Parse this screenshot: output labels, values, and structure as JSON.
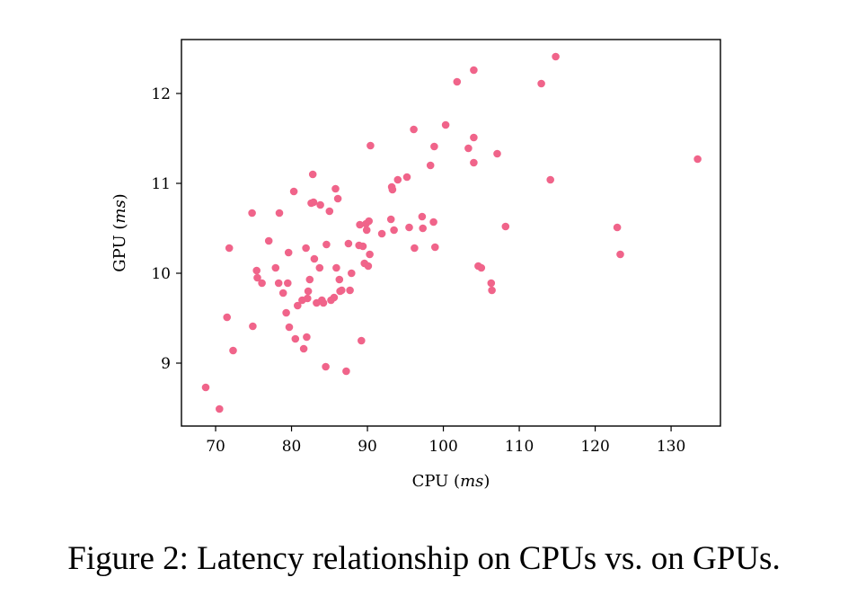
{
  "chart_data": {
    "type": "scatter",
    "xlabel": "CPU (ms)",
    "ylabel": "GPU (ms)",
    "xlabel_parts": {
      "text": "CPU (",
      "unit": "ms",
      "close": ")"
    },
    "ylabel_parts": {
      "text": "GPU (",
      "unit": "ms",
      "close": ")"
    },
    "xlim": [
      65.5,
      136.5
    ],
    "ylim": [
      8.3,
      12.6
    ],
    "xticks": [
      70,
      80,
      90,
      100,
      110,
      120,
      130
    ],
    "yticks": [
      9,
      10,
      11,
      12
    ],
    "grid": false,
    "marker_color": "#f0648a",
    "points": [
      [
        68.7,
        8.73
      ],
      [
        70.5,
        8.49
      ],
      [
        71.5,
        9.51
      ],
      [
        71.8,
        10.28
      ],
      [
        72.3,
        9.14
      ],
      [
        74.8,
        10.67
      ],
      [
        74.9,
        9.41
      ],
      [
        75.4,
        10.03
      ],
      [
        75.5,
        9.95
      ],
      [
        76.1,
        9.89
      ],
      [
        77.0,
        10.36
      ],
      [
        77.9,
        10.06
      ],
      [
        78.3,
        9.89
      ],
      [
        78.4,
        10.67
      ],
      [
        78.9,
        9.78
      ],
      [
        79.3,
        9.56
      ],
      [
        79.5,
        9.89
      ],
      [
        79.6,
        10.23
      ],
      [
        79.7,
        9.4
      ],
      [
        80.3,
        10.91
      ],
      [
        80.5,
        9.27
      ],
      [
        80.8,
        9.64
      ],
      [
        81.4,
        9.7
      ],
      [
        81.6,
        9.16
      ],
      [
        81.9,
        10.28
      ],
      [
        82.0,
        9.29
      ],
      [
        82.1,
        9.72
      ],
      [
        82.2,
        9.8
      ],
      [
        82.4,
        9.93
      ],
      [
        82.6,
        10.78
      ],
      [
        82.8,
        11.1
      ],
      [
        82.9,
        10.79
      ],
      [
        83.0,
        10.16
      ],
      [
        83.3,
        9.67
      ],
      [
        83.7,
        10.06
      ],
      [
        83.8,
        10.76
      ],
      [
        84.0,
        9.7
      ],
      [
        84.2,
        9.67
      ],
      [
        84.5,
        8.96
      ],
      [
        84.6,
        10.32
      ],
      [
        85.0,
        10.69
      ],
      [
        85.2,
        9.7
      ],
      [
        85.6,
        9.73
      ],
      [
        85.8,
        10.94
      ],
      [
        85.9,
        10.06
      ],
      [
        86.1,
        10.83
      ],
      [
        86.3,
        9.93
      ],
      [
        86.4,
        9.8
      ],
      [
        86.6,
        9.81
      ],
      [
        87.2,
        8.91
      ],
      [
        87.5,
        10.33
      ],
      [
        87.7,
        9.81
      ],
      [
        87.9,
        10.0
      ],
      [
        88.9,
        10.31
      ],
      [
        89.0,
        10.54
      ],
      [
        89.2,
        9.25
      ],
      [
        89.4,
        10.3
      ],
      [
        89.6,
        10.11
      ],
      [
        89.8,
        10.55
      ],
      [
        89.9,
        10.48
      ],
      [
        90.1,
        10.08
      ],
      [
        90.2,
        10.58
      ],
      [
        90.3,
        10.21
      ],
      [
        90.4,
        11.42
      ],
      [
        91.9,
        10.44
      ],
      [
        93.1,
        10.6
      ],
      [
        93.2,
        10.96
      ],
      [
        93.3,
        10.93
      ],
      [
        93.5,
        10.48
      ],
      [
        94.0,
        11.04
      ],
      [
        95.2,
        11.07
      ],
      [
        95.5,
        10.51
      ],
      [
        96.1,
        11.6
      ],
      [
        96.2,
        10.28
      ],
      [
        97.2,
        10.63
      ],
      [
        97.3,
        10.5
      ],
      [
        98.3,
        11.2
      ],
      [
        98.7,
        10.57
      ],
      [
        98.8,
        11.41
      ],
      [
        98.9,
        10.29
      ],
      [
        100.3,
        11.65
      ],
      [
        101.8,
        12.13
      ],
      [
        103.3,
        11.39
      ],
      [
        104.0,
        12.26
      ],
      [
        104.0,
        11.51
      ],
      [
        104.0,
        11.23
      ],
      [
        104.6,
        10.08
      ],
      [
        105.0,
        10.06
      ],
      [
        106.3,
        9.89
      ],
      [
        106.4,
        9.81
      ],
      [
        107.1,
        11.33
      ],
      [
        108.2,
        10.52
      ],
      [
        112.9,
        12.11
      ],
      [
        114.1,
        11.04
      ],
      [
        114.8,
        12.41
      ],
      [
        122.9,
        10.51
      ],
      [
        123.3,
        10.21
      ],
      [
        133.5,
        11.27
      ]
    ]
  },
  "caption": "Figure 2: Latency relationship on CPUs vs. on GPUs."
}
